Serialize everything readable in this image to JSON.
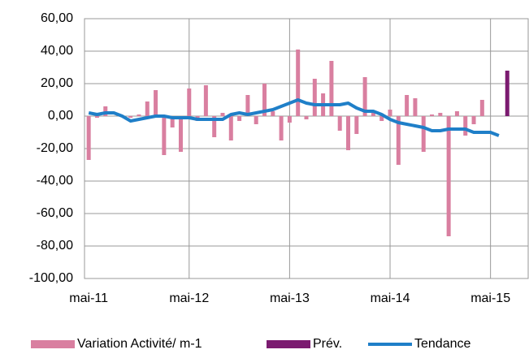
{
  "chart_data": {
    "type": "bar",
    "categories": [
      "mai-11",
      null,
      null,
      null,
      null,
      null,
      null,
      null,
      null,
      null,
      null,
      null,
      "mai-12",
      null,
      null,
      null,
      null,
      null,
      null,
      null,
      null,
      null,
      null,
      null,
      "mai-13",
      null,
      null,
      null,
      null,
      null,
      null,
      null,
      null,
      null,
      null,
      null,
      "mai-14",
      null,
      null,
      null,
      null,
      null,
      null,
      null,
      null,
      null,
      null,
      null,
      "mai-15",
      null,
      null,
      null,
      null
    ],
    "series": [
      {
        "name": "Variation Activité/ m-1",
        "type": "bar",
        "color": "#d97fa0",
        "values": [
          -27,
          -1,
          6,
          0,
          0,
          -1,
          1,
          9,
          16,
          -24,
          -7,
          -22,
          17,
          -3,
          19,
          -13,
          2,
          -15,
          -3,
          13,
          -5,
          20,
          3,
          -15,
          -4,
          41,
          -2,
          23,
          14,
          34,
          -9,
          -21,
          -11,
          24,
          3,
          -3,
          4,
          -30,
          13,
          11,
          -22,
          1,
          2,
          -74,
          3,
          -12,
          -5,
          10,
          null,
          null,
          null,
          null,
          null
        ]
      },
      {
        "name": "Prév.",
        "type": "bar",
        "color": "#7b1b70",
        "values": [
          null,
          null,
          null,
          null,
          null,
          null,
          null,
          null,
          null,
          null,
          null,
          null,
          null,
          null,
          null,
          null,
          null,
          null,
          null,
          null,
          null,
          null,
          null,
          null,
          null,
          null,
          null,
          null,
          null,
          null,
          null,
          null,
          null,
          null,
          null,
          null,
          null,
          null,
          null,
          null,
          null,
          null,
          null,
          null,
          null,
          null,
          null,
          null,
          null,
          null,
          28,
          null,
          null
        ]
      },
      {
        "name": "Tendance",
        "type": "line",
        "color": "#1f7fc8",
        "values": [
          2,
          1,
          2,
          2,
          0,
          -3,
          -2,
          -1,
          0,
          0,
          -1,
          -1,
          -1,
          -2,
          -2,
          -2,
          -2,
          1,
          2,
          1,
          2,
          3,
          4,
          6,
          8,
          10,
          8,
          7,
          7,
          7,
          7,
          8,
          5,
          3,
          3,
          1,
          -2,
          -4,
          -5,
          -6,
          -7,
          -9,
          -9,
          -8,
          -8,
          -8,
          -10,
          -10,
          -10,
          -12,
          null,
          null,
          null
        ]
      }
    ],
    "ylim": [
      -100,
      60
    ],
    "yticks": [
      {
        "value": -100,
        "label": "-100,00"
      },
      {
        "value": -80,
        "label": "-80,00"
      },
      {
        "value": -60,
        "label": "-60,00"
      },
      {
        "value": -40,
        "label": "-40,00"
      },
      {
        "value": -20,
        "label": "-20,00"
      },
      {
        "value": 0,
        "label": "0,00"
      },
      {
        "value": 20,
        "label": "20,00"
      },
      {
        "value": 40,
        "label": "40,00"
      },
      {
        "value": 60,
        "label": "60,00"
      }
    ],
    "grid": true,
    "legend": "bottom"
  }
}
